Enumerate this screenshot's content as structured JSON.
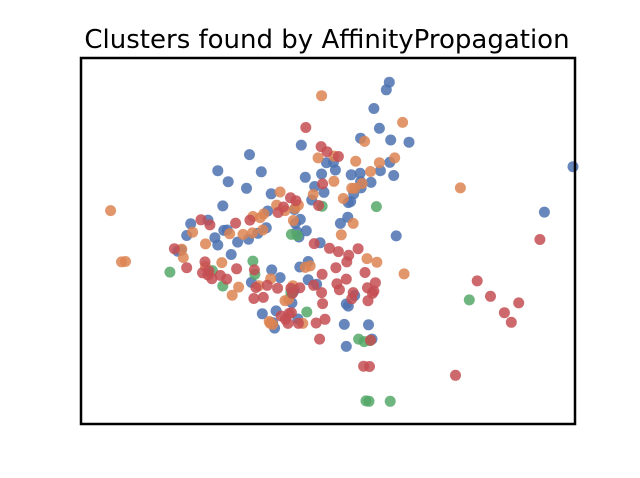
{
  "chart_data": {
    "type": "scatter",
    "title": "Clusters found by AffinityPropagation",
    "xlabel": "",
    "ylabel": "",
    "xlim": [
      0,
      100
    ],
    "ylim": [
      0,
      100
    ],
    "grid": false,
    "axis_ticks": false,
    "colors": {
      "blue": "#4c72b0",
      "orange": "#dd8452",
      "green": "#55a868",
      "red": "#c44e52"
    },
    "series": [
      {
        "color": "blue",
        "points": [
          [
            62.4,
            93.4
          ],
          [
            61.8,
            91.3
          ],
          [
            59.3,
            86.2
          ],
          [
            60.4,
            80.8
          ],
          [
            62.7,
            77.6
          ],
          [
            56.6,
            78.1
          ],
          [
            44.6,
            76.2
          ],
          [
            34.1,
            73.6
          ],
          [
            27.7,
            69.2
          ],
          [
            36.5,
            68.9
          ],
          [
            49.7,
            71.4
          ],
          [
            54.7,
            68.1
          ],
          [
            51.5,
            69.4
          ],
          [
            48.7,
            68.3
          ],
          [
            62.5,
            71.5
          ],
          [
            60.6,
            69.2
          ],
          [
            63.3,
            67.9
          ],
          [
            45.4,
            67.4
          ],
          [
            56.5,
            68.5
          ],
          [
            58.7,
            66.0
          ],
          [
            47.3,
            64.9
          ],
          [
            56.6,
            66.2
          ],
          [
            49.2,
            63.3
          ],
          [
            56.7,
            64.5
          ],
          [
            55.2,
            62.9
          ],
          [
            54.6,
            60.8
          ],
          [
            46.7,
            61.2
          ],
          [
            43.2,
            58.6
          ],
          [
            38.5,
            62.9
          ],
          [
            33.5,
            64.4
          ],
          [
            29.8,
            66.2
          ],
          [
            28.7,
            59.6
          ],
          [
            37.8,
            58.2
          ],
          [
            44.4,
            55.9
          ],
          [
            43.4,
            54.8
          ],
          [
            43.7,
            52.5
          ],
          [
            44.1,
            51.1
          ],
          [
            35.8,
            52.1
          ],
          [
            33.9,
            50.5
          ],
          [
            31.7,
            49.7
          ],
          [
            29.6,
            53.0
          ],
          [
            27.7,
            48.9
          ],
          [
            25.7,
            55.7
          ],
          [
            28.9,
            52.9
          ],
          [
            27.1,
            50.9
          ],
          [
            22.2,
            54.7
          ],
          [
            21.4,
            51.5
          ],
          [
            20.3,
            47.5
          ],
          [
            19.6,
            47.2
          ],
          [
            37.5,
            53.6
          ],
          [
            45.6,
            52.8
          ],
          [
            54.0,
            56.5
          ],
          [
            52.5,
            54.8
          ],
          [
            48.4,
            49.5
          ],
          [
            46.0,
            44.4
          ],
          [
            44.3,
            42.9
          ],
          [
            38.6,
            42.1
          ],
          [
            30.4,
            46.3
          ],
          [
            34.5,
            38.7
          ],
          [
            40.3,
            40.0
          ],
          [
            46.0,
            39.4
          ],
          [
            47.7,
            38.2
          ],
          [
            43.2,
            36.6
          ],
          [
            42.9,
            35.9
          ],
          [
            42.7,
            33.1
          ],
          [
            36.7,
            30.1
          ],
          [
            39.5,
            30.9
          ],
          [
            38.8,
            27.7
          ],
          [
            39.2,
            26.2
          ],
          [
            43.9,
            28.7
          ],
          [
            53.7,
            32.8
          ],
          [
            54.1,
            32.2
          ],
          [
            55.4,
            35.1
          ],
          [
            53.3,
            27.2
          ],
          [
            58.2,
            27.1
          ],
          [
            58.9,
            23.2
          ],
          [
            53.7,
            21.2
          ],
          [
            63.8,
            51.4
          ],
          [
            93.8,
            57.9
          ],
          [
            99.6,
            70.3
          ],
          [
            66.4,
            77.0
          ],
          [
            54.1,
            60.5
          ],
          [
            51.1,
            71.5
          ]
        ]
      },
      {
        "color": "orange",
        "points": [
          [
            48.7,
            89.7
          ],
          [
            65.1,
            82.4
          ],
          [
            57.4,
            77.2
          ],
          [
            63.5,
            72.7
          ],
          [
            60.4,
            71.4
          ],
          [
            58.6,
            69.0
          ],
          [
            55.6,
            71.8
          ],
          [
            51.2,
            73.2
          ],
          [
            48.0,
            72.7
          ],
          [
            51.2,
            66.3
          ],
          [
            54.8,
            64.4
          ],
          [
            56.9,
            65.7
          ],
          [
            55.4,
            64.4
          ],
          [
            53.1,
            61.6
          ],
          [
            47.0,
            62.7
          ],
          [
            40.3,
            63.4
          ],
          [
            43.3,
            58.9
          ],
          [
            44.0,
            59.8
          ],
          [
            41.3,
            58.3
          ],
          [
            43.0,
            55.6
          ],
          [
            37.0,
            57.4
          ],
          [
            39.6,
            59.8
          ],
          [
            36.3,
            56.4
          ],
          [
            34.8,
            56.7
          ],
          [
            34.7,
            52.2
          ],
          [
            32.8,
            51.8
          ],
          [
            36.8,
            53.0
          ],
          [
            30.1,
            52.0
          ],
          [
            22.6,
            52.4
          ],
          [
            25.2,
            49.2
          ],
          [
            6.0,
            58.3
          ],
          [
            8.2,
            44.3
          ],
          [
            9.0,
            44.4
          ],
          [
            20.7,
            45.5
          ],
          [
            20.4,
            47.8
          ],
          [
            25.2,
            43.0
          ],
          [
            28.5,
            44.1
          ],
          [
            30.6,
            35.2
          ],
          [
            31.9,
            37.4
          ],
          [
            36.0,
            37.8
          ],
          [
            38.4,
            39.7
          ],
          [
            46.4,
            43.2
          ],
          [
            45.4,
            42.8
          ],
          [
            42.9,
            37.8
          ],
          [
            42.0,
            34.1
          ],
          [
            41.3,
            33.7
          ],
          [
            38.1,
            28.0
          ],
          [
            38.8,
            27.2
          ],
          [
            44.9,
            27.5
          ],
          [
            52.7,
            51.7
          ],
          [
            55.1,
            54.8
          ],
          [
            57.9,
            45.2
          ],
          [
            59.9,
            44.2
          ],
          [
            65.4,
            41.0
          ],
          [
            76.8,
            64.5
          ],
          [
            38.3,
            27.5
          ]
        ]
      },
      {
        "color": "green",
        "points": [
          [
            59.8,
            59.4
          ],
          [
            48.8,
            59.5
          ],
          [
            43.8,
            51.5
          ],
          [
            42.6,
            51.8
          ],
          [
            34.8,
            44.5
          ],
          [
            26.6,
            41.9
          ],
          [
            35.2,
            40.9
          ],
          [
            42.5,
            36.0
          ],
          [
            28.7,
            37.7
          ],
          [
            18.0,
            41.5
          ],
          [
            45.7,
            30.6
          ],
          [
            56.2,
            23.2
          ],
          [
            57.3,
            22.5
          ],
          [
            58.5,
            22.8
          ],
          [
            78.6,
            33.9
          ],
          [
            57.7,
            6.3
          ],
          [
            58.3,
            6.2
          ],
          [
            62.6,
            6.2
          ]
        ]
      },
      {
        "color": "red",
        "points": [
          [
            45.5,
            81.0
          ],
          [
            48.6,
            75.8
          ],
          [
            49.8,
            74.4
          ],
          [
            52.1,
            73.1
          ],
          [
            48.9,
            65.6
          ],
          [
            48.1,
            59.7
          ],
          [
            43.5,
            61.0
          ],
          [
            42.4,
            61.8
          ],
          [
            41.0,
            59.3
          ],
          [
            39.9,
            57.8
          ],
          [
            31.3,
            54.9
          ],
          [
            34.2,
            55.7
          ],
          [
            26.1,
            54.4
          ],
          [
            24.3,
            55.8
          ],
          [
            18.9,
            47.9
          ],
          [
            21.4,
            42.7
          ],
          [
            25.1,
            44.3
          ],
          [
            25.9,
            41.8
          ],
          [
            24.6,
            41.3
          ],
          [
            25.7,
            40.7
          ],
          [
            26.5,
            39.7
          ],
          [
            28.2,
            40.6
          ],
          [
            31.5,
            42.4
          ],
          [
            29.5,
            39.6
          ],
          [
            35.1,
            42.1
          ],
          [
            37.7,
            37.9
          ],
          [
            35.4,
            37.3
          ],
          [
            35.0,
            34.3
          ],
          [
            36.9,
            34.6
          ],
          [
            39.8,
            37.1
          ],
          [
            42.5,
            37.1
          ],
          [
            47.1,
            37.9
          ],
          [
            51.8,
            38.3
          ],
          [
            53.7,
            39.6
          ],
          [
            52.3,
            36.7
          ],
          [
            48.8,
            40.9
          ],
          [
            51.6,
            42.7
          ],
          [
            53.8,
            44.3
          ],
          [
            54.2,
            46.1
          ],
          [
            52.1,
            47.1
          ],
          [
            50.3,
            48.0
          ],
          [
            47.2,
            49.3
          ],
          [
            56.1,
            47.9
          ],
          [
            57.5,
            41.4
          ],
          [
            55.1,
            35.9
          ],
          [
            54.8,
            34.2
          ],
          [
            58.0,
            37.2
          ],
          [
            59.3,
            36.3
          ],
          [
            58.1,
            33.7
          ],
          [
            42.8,
            35.7
          ],
          [
            44.3,
            37.2
          ],
          [
            48.7,
            35.9
          ],
          [
            48.9,
            32.9
          ],
          [
            42.6,
            30.4
          ],
          [
            42.1,
            30.2
          ],
          [
            40.5,
            29.5
          ],
          [
            41.4,
            28.6
          ],
          [
            41.9,
            27.5
          ],
          [
            44.0,
            27.5
          ],
          [
            47.6,
            27.6
          ],
          [
            49.4,
            28.6
          ],
          [
            48.3,
            23.2
          ],
          [
            58.6,
            22.9
          ],
          [
            57.2,
            15.8
          ],
          [
            58.4,
            15.7
          ],
          [
            75.8,
            13.3
          ],
          [
            80.2,
            39.1
          ],
          [
            82.9,
            34.9
          ],
          [
            85.7,
            30.4
          ],
          [
            88.6,
            33.1
          ],
          [
            87.1,
            27.8
          ],
          [
            92.9,
            50.4
          ],
          [
            59.6,
            38.6
          ],
          [
            59.0,
            35.7
          ]
        ]
      }
    ]
  }
}
